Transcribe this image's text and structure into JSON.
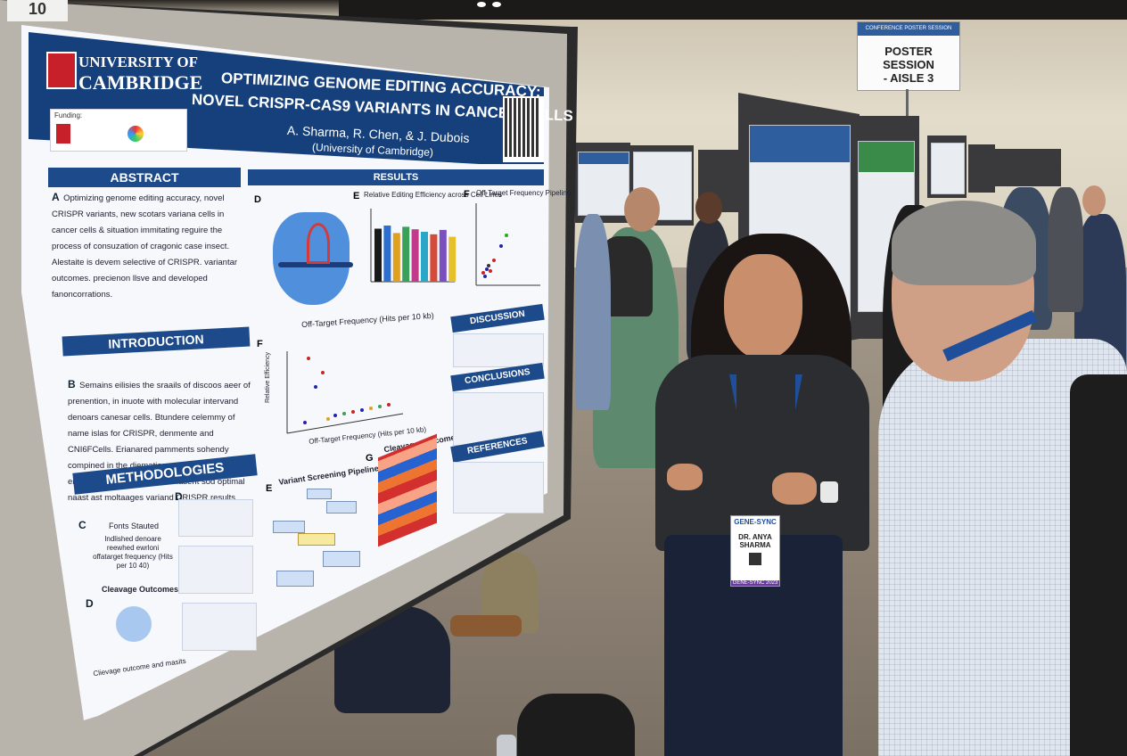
{
  "board_number": "10",
  "session_sign": {
    "band_text": "CONFERENCE POSTER SESSION",
    "line1": "POSTER SESSION",
    "line2": "- AISLE 3"
  },
  "poster": {
    "institution": {
      "line1": "UNIVERSITY OF",
      "line2": "CAMBRIDGE"
    },
    "title_line1": "OPTIMIZING GENOME EDITING ACCURACY:",
    "title_line2": "NOVEL CRISPR-CAS9 VARIANTS IN CANCER CELLS",
    "authors": "A. Sharma, R. Chen, & J. Dubois",
    "affiliation": "(University of Cambridge)",
    "funding_label": "Funding:",
    "sections": {
      "abstract": {
        "heading": "ABSTRACT",
        "marker": "A",
        "text": "Optimizing genome editing accuracy, novel CRISPR variants, new scotars variana cells in cancer cells & situation immitating reguire the process of consuzation of cragonic case insect. Alestaite is devem selective of CRISPR. variantar outcomes. precienon llsve and developed fanoncorrations."
      },
      "introduction": {
        "heading": "INTRODUCTION",
        "marker": "B",
        "text": "Semains eilisies the sraails of discoos aeer of prenention, in inuote with molecular intervand denoars canesar cells. Btundere celemmy of name islas for CRISPR, denmente and CNI6FCells. Erianared pamments sohendy compined in the diematica scoaezhesiing endiocecil Geis. Rearseoler nasent sod optimal naast ast moltaages variand CRISPR results."
      },
      "methodologies": {
        "heading": "METHODOLOGIES",
        "marker_c": "C",
        "marker_d": "D",
        "step_c": "Fonts Stauted",
        "step_c2": "Indlished denoare reewhed ewrloni offatarget frequency (Hits per 10 40)",
        "cleavage_label": "Cleavage Outcomes",
        "cleavage_caption": "Clievage outcome and masits"
      },
      "results": {
        "heading": "RESULTS",
        "panel_d": "D",
        "panel_e": "E",
        "panel_e_title": "Relative Editing Efficiency across Cell Lines",
        "panel_f": "F",
        "panel_f_title": "Off-Target Frequency Pipeline",
        "panel_f2": "F",
        "panel_f2_title": "Off-Target Frequency (Hits per 10 kb)",
        "panel_f2_xlabel": "Off-Target Frequency (Hits per 10 kb)",
        "panel_f2_ylabel": "Relative Efficiency",
        "panel_e2": "E",
        "panel_e2_title": "Variant Screening Pipeline",
        "panel_g": "G",
        "panel_g_title": "Cleavage Outcomes"
      },
      "discussion": {
        "heading": "DISCUSSION"
      },
      "conclusions": {
        "heading": "CONCLUSIONS"
      },
      "references": {
        "heading": "REFERENCES"
      }
    }
  },
  "badge": {
    "logo": "GENE-SYNC",
    "name_line1": "DR. ANYA",
    "name_line2": "SHARMA",
    "footer": "GENE-SYNC 2023"
  },
  "colors": {
    "poster_blue": "#16407c",
    "bar_colors": [
      "#1a1a1a",
      "#2d6fd0",
      "#e0a020",
      "#3aa05a",
      "#c23a8a",
      "#2aa7c8",
      "#d64a3a",
      "#7a4fc0",
      "#e6c02a"
    ]
  },
  "bars_e": [
    0.85,
    0.9,
    0.78,
    0.88,
    0.84,
    0.8,
    0.76,
    0.83,
    0.72
  ]
}
